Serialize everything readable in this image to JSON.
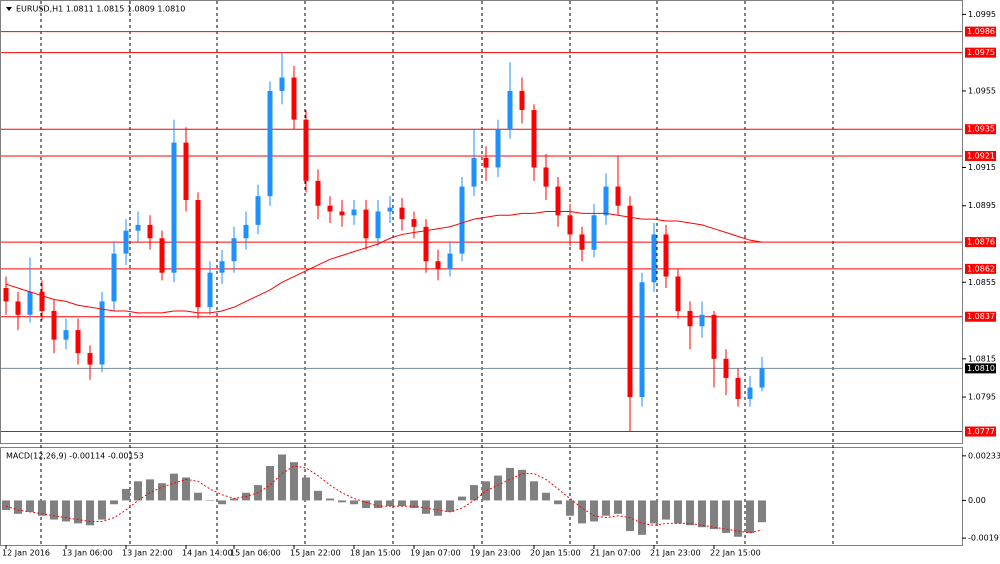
{
  "chart_data": {
    "type": "candlestick",
    "title": "EURUSD,H1  1.0811 1.0815 1.0809 1.0810",
    "categories": [
      "12 Jan 2016",
      null,
      null,
      null,
      null,
      "13 Jan 06:00",
      null,
      null,
      null,
      null,
      "13 Jan 22:00",
      null,
      null,
      null,
      null,
      "14 Jan 14:00",
      null,
      null,
      null,
      "15 Jan 06:00",
      null,
      null,
      null,
      null,
      "15 Jan 22:00",
      null,
      null,
      null,
      null,
      "18 Jan 15:00",
      null,
      null,
      null,
      null,
      "19 Jan 07:00",
      null,
      null,
      null,
      null,
      "19 Jan 23:00",
      null,
      null,
      null,
      null,
      "20 Jan 15:00",
      null,
      null,
      null,
      null,
      "21 Jan 07:00",
      null,
      null,
      null,
      null,
      "21 Jan 23:00",
      null,
      null,
      null,
      null,
      "22 Jan 15:00",
      null,
      null,
      null,
      null
    ],
    "open": [
      1.0852,
      1.0845,
      1.0838,
      1.085,
      1.084,
      1.0825,
      1.083,
      1.0818,
      1.0812,
      1.0845,
      1.087,
      1.0882,
      1.0885,
      1.0878,
      1.086,
      1.0928,
      1.0898,
      1.0842,
      1.086,
      1.0866,
      1.0878,
      1.0885,
      1.09,
      1.0955,
      1.0962,
      1.094,
      1.0908,
      1.0895,
      1.0892,
      1.089,
      1.0893,
      1.0878,
      1.0892,
      1.0894,
      1.0888,
      1.0884,
      1.0866,
      1.0862,
      1.087,
      1.0905,
      1.092,
      1.0915,
      1.0935,
      1.0955,
      1.0945,
      1.0915,
      1.0905,
      1.089,
      1.088,
      1.0872,
      1.089,
      1.0905,
      1.0895,
      1.0795,
      1.0855,
      1.088,
      1.0858,
      1.084,
      1.0832,
      1.0838,
      1.0815,
      1.0805,
      1.0794,
      1.08
    ],
    "high": [
      1.0858,
      1.085,
      1.0868,
      1.0856,
      1.0846,
      1.0836,
      1.0836,
      1.0822,
      1.085,
      1.0876,
      1.0888,
      1.0892,
      1.089,
      1.0882,
      1.094,
      1.0936,
      1.0902,
      1.0866,
      1.0872,
      1.0884,
      1.0892,
      1.0906,
      1.096,
      1.0975,
      1.0968,
      1.0945,
      1.0914,
      1.09,
      1.0898,
      1.0898,
      1.0898,
      1.0898,
      1.09,
      1.0899,
      1.0892,
      1.0888,
      1.0872,
      1.0876,
      1.091,
      1.0935,
      1.0926,
      1.094,
      1.097,
      1.0962,
      1.0948,
      1.0922,
      1.091,
      1.0896,
      1.0884,
      1.0896,
      1.0912,
      1.0921,
      1.09,
      1.086,
      1.0886,
      1.0885,
      1.0862,
      1.0845,
      1.0845,
      1.084,
      1.082,
      1.081,
      1.0806,
      1.0816
    ],
    "low": [
      1.0838,
      1.083,
      1.0834,
      1.0835,
      1.0818,
      1.082,
      1.0812,
      1.0804,
      1.0808,
      1.084,
      1.0864,
      1.0876,
      1.0872,
      1.0856,
      1.0855,
      1.0892,
      1.0836,
      1.0838,
      1.0854,
      1.086,
      1.0872,
      1.088,
      1.0895,
      1.0948,
      1.0935,
      1.0902,
      1.0888,
      1.0886,
      1.0884,
      1.0885,
      1.0872,
      1.0874,
      1.0886,
      1.0882,
      1.0878,
      1.086,
      1.0856,
      1.0858,
      1.0866,
      1.09,
      1.0908,
      1.091,
      1.093,
      1.0938,
      1.0908,
      1.0898,
      1.0884,
      1.0874,
      1.0866,
      1.0868,
      1.0885,
      1.089,
      1.0777,
      1.079,
      1.085,
      1.0852,
      1.0836,
      1.082,
      1.0826,
      1.08,
      1.0796,
      1.079,
      1.079,
      1.0798
    ],
    "close": [
      1.0845,
      1.0838,
      1.085,
      1.084,
      1.0825,
      1.083,
      1.0818,
      1.0812,
      1.0845,
      1.087,
      1.0882,
      1.0885,
      1.0878,
      1.086,
      1.0928,
      1.0898,
      1.0842,
      1.086,
      1.0866,
      1.0878,
      1.0885,
      1.09,
      1.0955,
      1.0962,
      1.094,
      1.0908,
      1.0895,
      1.0892,
      1.089,
      1.0893,
      1.0878,
      1.0892,
      1.0894,
      1.0888,
      1.0884,
      1.0866,
      1.0862,
      1.087,
      1.0905,
      1.092,
      1.0915,
      1.0935,
      1.0955,
      1.0945,
      1.0915,
      1.0905,
      1.089,
      1.088,
      1.0872,
      1.089,
      1.0905,
      1.0895,
      1.0795,
      1.0855,
      1.088,
      1.0858,
      1.084,
      1.0832,
      1.0838,
      1.0815,
      1.0805,
      1.0794,
      1.08,
      1.081
    ],
    "up_color": "#1e90ff",
    "down_color": "#ff0000",
    "ylim": [
      1.0771,
      1.1002
    ],
    "yticks": [
      1.0995,
      1.0955,
      1.0915,
      1.0895,
      1.0855,
      1.0815,
      1.0795
    ],
    "levels": [
      1.0986,
      1.0975,
      1.0935,
      1.0921,
      1.0876,
      1.0862,
      1.0837,
      1.0777
    ],
    "level_color": "#ff0000",
    "current_price": {
      "value": 1.081,
      "label": "1.0810"
    },
    "moving_average": {
      "color": "#ff0000",
      "values": [
        1.0854,
        1.0852,
        1.085,
        1.0848,
        1.0846,
        1.0845,
        1.0843,
        1.0842,
        1.0841,
        1.084,
        1.084,
        1.0839,
        1.0839,
        1.0839,
        1.084,
        1.084,
        1.0839,
        1.0839,
        1.084,
        1.0842,
        1.0845,
        1.0848,
        1.0851,
        1.0855,
        1.0858,
        1.0861,
        1.0864,
        1.0867,
        1.0869,
        1.0871,
        1.0873,
        1.0875,
        1.0878,
        1.088,
        1.0881,
        1.0882,
        1.0883,
        1.0884,
        1.0886,
        1.0888,
        1.0889,
        1.089,
        1.089,
        1.0891,
        1.0891,
        1.0892,
        1.0892,
        1.0892,
        1.0891,
        1.0891,
        1.0891,
        1.089,
        1.0889,
        1.0888,
        1.0888,
        1.0887,
        1.0887,
        1.0886,
        1.0885,
        1.0883,
        1.0881,
        1.0879,
        1.0877,
        1.0876
      ]
    },
    "macd": {
      "title": "MACD(12,26,9) -0.00114 -0.00153",
      "ylim": [
        -0.00233,
        0.00274
      ],
      "yticks": [
        0.00233,
        {
          "value": 0,
          "label": "0.00"
        },
        -0.00197
      ],
      "histogram": {
        "color": "#808080",
        "values": [
          -0.0005,
          -0.0007,
          -0.0006,
          -0.0008,
          -0.001,
          -0.0011,
          -0.0012,
          -0.0013,
          -0.001,
          -0.0002,
          0.0006,
          0.001,
          0.0011,
          0.0009,
          0.0014,
          0.0012,
          0.0004,
          0.0,
          -0.0002,
          0.0001,
          0.0004,
          0.0008,
          0.0018,
          0.0024,
          0.002,
          0.0012,
          0.0005,
          0.0001,
          -0.0001,
          -0.0002,
          -0.0004,
          -0.0004,
          -0.0003,
          -0.0003,
          -0.0004,
          -0.0007,
          -0.0008,
          -0.0006,
          0.0002,
          0.0008,
          0.001,
          0.0013,
          0.0017,
          0.0016,
          0.001,
          0.0004,
          -0.0002,
          -0.0008,
          -0.0012,
          -0.0011,
          -0.0008,
          -0.0007,
          -0.0016,
          -0.0018,
          -0.0012,
          -0.001,
          -0.0012,
          -0.0013,
          -0.0014,
          -0.0015,
          -0.0017,
          -0.0019,
          -0.0017,
          -0.00114
        ]
      },
      "signal": {
        "color": "#ff0000",
        "values": [
          -0.0003,
          -0.0005,
          -0.0006,
          -0.0007,
          -0.0008,
          -0.0009,
          -0.001,
          -0.0011,
          -0.0011,
          -0.0009,
          -0.0005,
          0.0,
          0.0004,
          0.0007,
          0.0009,
          0.0011,
          0.001,
          0.0006,
          0.0003,
          0.0001,
          0.0002,
          0.0004,
          0.0008,
          0.0014,
          0.0018,
          0.0017,
          0.0013,
          0.0008,
          0.0004,
          0.0001,
          -0.0001,
          -0.0003,
          -0.0003,
          -0.0003,
          -0.0003,
          -0.0004,
          -0.0005,
          -0.0006,
          -0.0004,
          0.0,
          0.0005,
          0.0008,
          0.0011,
          0.0014,
          0.0014,
          0.0011,
          0.0006,
          0.0001,
          -0.0004,
          -0.0008,
          -0.0009,
          -0.0008,
          -0.0009,
          -0.0012,
          -0.0013,
          -0.0012,
          -0.0012,
          -0.0012,
          -0.0013,
          -0.0014,
          -0.0015,
          -0.0016,
          -0.0017,
          -0.00153
        ]
      }
    }
  }
}
